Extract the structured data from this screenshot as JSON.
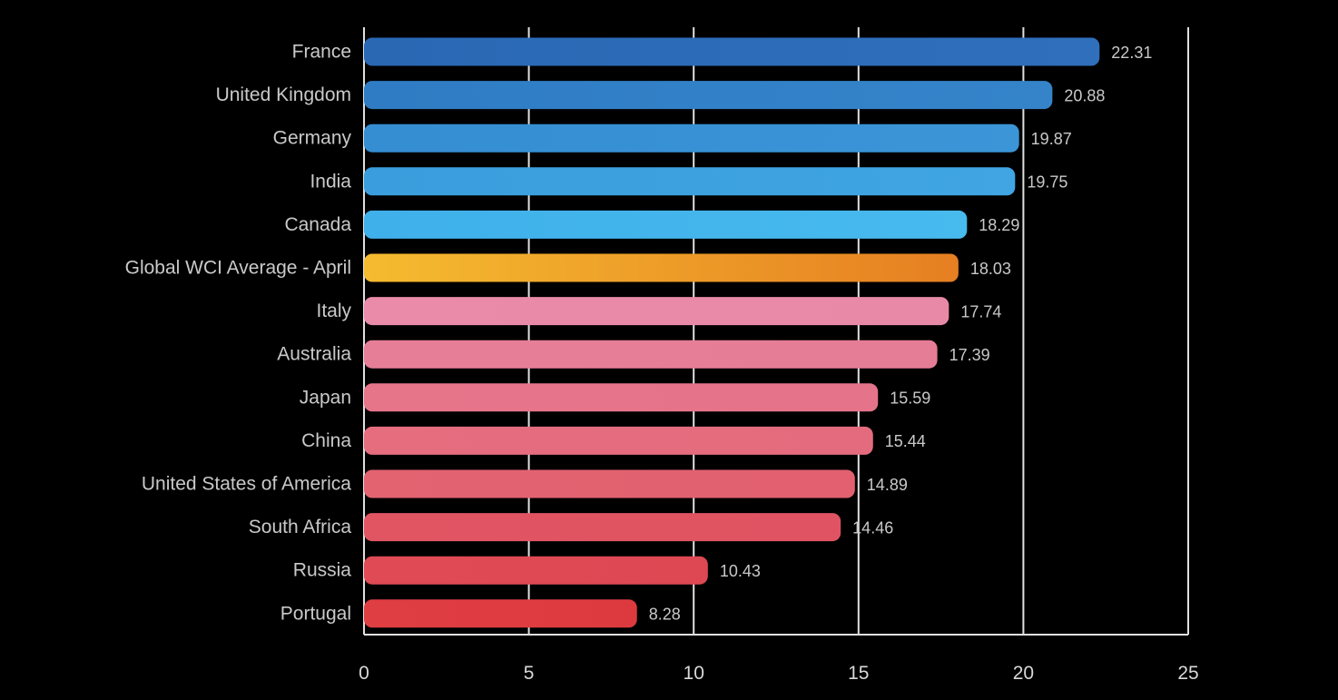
{
  "chart_data": {
    "type": "bar",
    "orientation": "horizontal",
    "categories": [
      "France",
      "United Kingdom",
      "Germany",
      "India",
      "Canada",
      "Global WCI Average - April",
      "Italy",
      "Australia",
      "Japan",
      "China",
      "United States of America",
      "South Africa",
      "Russia",
      "Portugal"
    ],
    "values": [
      22.31,
      20.88,
      19.87,
      19.75,
      18.29,
      18.03,
      17.74,
      17.39,
      15.59,
      15.44,
      14.89,
      14.46,
      10.43,
      8.28
    ],
    "value_labels": [
      "22.31",
      "20.88",
      "19.87",
      "19.75",
      "18.29",
      "18.03",
      "17.74",
      "17.39",
      "15.59",
      "15.44",
      "14.89",
      "14.46",
      "10.43",
      "8.28"
    ],
    "colors": [
      [
        "#2a68b4",
        "#2f6fbc"
      ],
      [
        "#2f7cc4",
        "#3584ca"
      ],
      [
        "#358dd2",
        "#3b95d7"
      ],
      [
        "#3a9ddd",
        "#40a5e2"
      ],
      [
        "#3fb0ea",
        "#47baee"
      ],
      [
        "#f5bb2f",
        "#e67f22"
      ],
      [
        "#e98ba9",
        "#e88aa7"
      ],
      [
        "#e77e98",
        "#e67d97"
      ],
      [
        "#e6758a",
        "#e5738a"
      ],
      [
        "#e56d7e",
        "#e46b7d"
      ],
      [
        "#e36371",
        "#e26070"
      ],
      [
        "#e15563",
        "#e05362"
      ],
      [
        "#df4a55",
        "#de4853"
      ],
      [
        "#df3e43",
        "#dd3a3f"
      ]
    ],
    "title": "",
    "xlabel": "",
    "ylabel": "",
    "xlim": [
      0,
      25
    ],
    "xticks": [
      0,
      5,
      10,
      15,
      20,
      25
    ],
    "xtick_labels": [
      "0",
      "5",
      "10",
      "15",
      "20",
      "25"
    ],
    "grid": true,
    "legend": "none",
    "background": "#000000"
  }
}
